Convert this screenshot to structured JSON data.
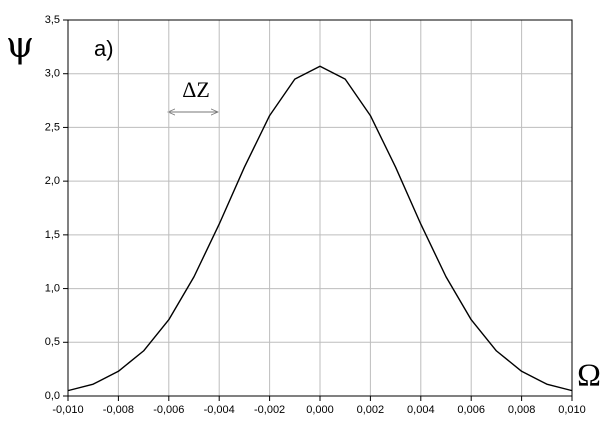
{
  "chart_data": {
    "type": "line",
    "x_label": "Ω",
    "y_label": "ψ",
    "annotations": [
      "a)",
      "ΔZ"
    ],
    "x": [
      -0.01,
      -0.009,
      -0.008,
      -0.007,
      -0.006,
      -0.005,
      -0.004,
      -0.003,
      -0.002,
      -0.001,
      0.0,
      0.001,
      0.002,
      0.003,
      0.004,
      0.005,
      0.006,
      0.007,
      0.008,
      0.009,
      0.01
    ],
    "series": [
      {
        "color": "#000000",
        "values": [
          0.05,
          0.11,
          0.23,
          0.42,
          0.71,
          1.11,
          1.6,
          2.13,
          2.61,
          2.95,
          3.07,
          2.95,
          2.61,
          2.13,
          1.6,
          1.11,
          0.71,
          0.42,
          0.23,
          0.11,
          0.05
        ]
      }
    ],
    "xlim": [
      -0.01,
      0.01
    ],
    "xticks": [
      {
        "value": -0.01,
        "label": "-0,010"
      },
      {
        "value": -0.008,
        "label": "-0,008"
      },
      {
        "value": -0.006,
        "label": "-0,006"
      },
      {
        "value": -0.004,
        "label": "-0,004"
      },
      {
        "value": -0.002,
        "label": "-0,002"
      },
      {
        "value": 0,
        "label": "0,000"
      },
      {
        "value": 0.002,
        "label": "0,002"
      },
      {
        "value": 0.004,
        "label": "0,004"
      },
      {
        "value": 0.006,
        "label": "0,006"
      },
      {
        "value": 0.008,
        "label": "0,008"
      },
      {
        "value": 0.01,
        "label": "0,010"
      }
    ],
    "ylim": [
      0,
      3.5
    ],
    "yticks": [
      {
        "value": 0,
        "label": "0,0"
      },
      {
        "value": 0.5,
        "label": "0,5"
      },
      {
        "value": 1.0,
        "label": "1,0"
      },
      {
        "value": 1.5,
        "label": "1,5"
      },
      {
        "value": 2.0,
        "label": "2,0"
      },
      {
        "value": 2.5,
        "label": "2,5"
      },
      {
        "value": 3.0,
        "label": "3,0"
      },
      {
        "value": 3.5,
        "label": "3,5"
      }
    ],
    "grid": true
  }
}
